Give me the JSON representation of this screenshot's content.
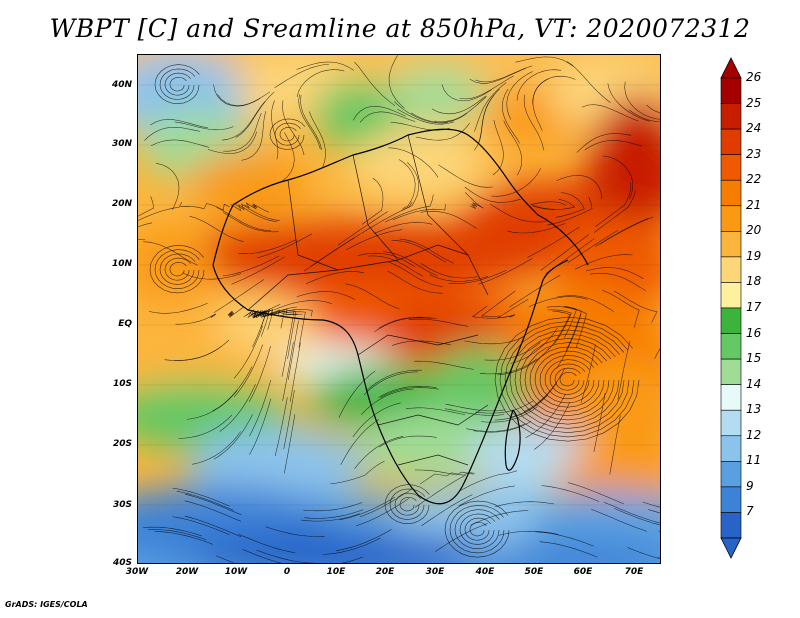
{
  "title": "WBPT [C] and Sreamline at 850hPa, VT: 2020072312",
  "credit": "GrADS: IGES/COLA",
  "map": {
    "lat_labels": [
      "40N",
      "30N",
      "20N",
      "10N",
      "EQ",
      "10S",
      "20S",
      "30S",
      "40S"
    ],
    "lon_labels": [
      "30W",
      "20W",
      "10W",
      "0",
      "10E",
      "20E",
      "30E",
      "40E",
      "50E",
      "60E",
      "70E"
    ]
  },
  "colorbar": {
    "labels": [
      "26",
      "25",
      "24",
      "23",
      "22",
      "21",
      "20",
      "19",
      "18",
      "17",
      "16",
      "15",
      "14",
      "13",
      "12",
      "11",
      "9",
      "7"
    ],
    "colors": [
      "#a50000",
      "#c81e00",
      "#e03c00",
      "#ef5a00",
      "#f77d00",
      "#fa9a14",
      "#fcb53c",
      "#fdd67a",
      "#fff0a0",
      "#3cb43c",
      "#64c864",
      "#a0dc96",
      "#e6fafa",
      "#b4dcf0",
      "#8cc3eb",
      "#5aa0e1",
      "#3c82d7",
      "#2864c8"
    ]
  }
}
